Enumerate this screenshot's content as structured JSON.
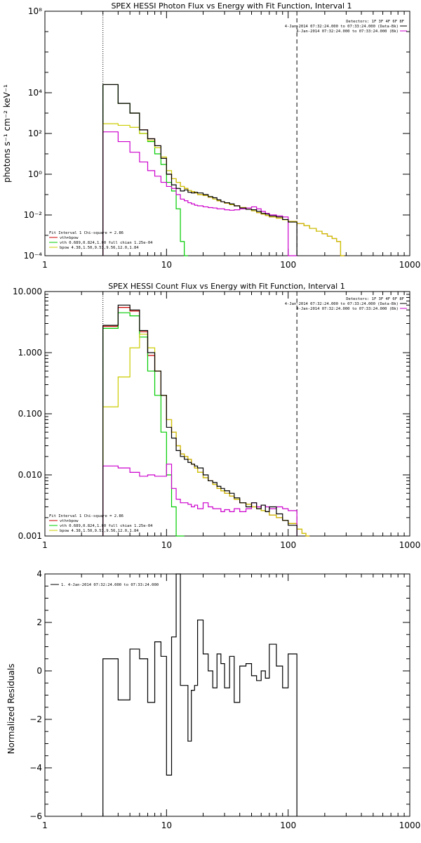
{
  "colors": {
    "total": "#cc0000",
    "vth": "#00cc00",
    "bpow": "#cccc00",
    "background": "#cc00cc",
    "data": "#000000"
  },
  "chart_data": [
    {
      "id": "photon",
      "type": "line",
      "title": "SPEX HESSI Photon Flux vs Energy with Fit Function, Interval 1",
      "ylabel": "photons s⁻¹ cm⁻² keV⁻¹",
      "xlog": true,
      "ylog": true,
      "xlim": [
        1,
        1000
      ],
      "ylim": [
        0.0001,
        100000000
      ],
      "xticks": [
        {
          "v": 1,
          "label": "1"
        },
        {
          "v": 10,
          "label": "10"
        },
        {
          "v": 100,
          "label": "100"
        },
        {
          "v": 1000,
          "label": "1000"
        }
      ],
      "yticks": [
        {
          "v": 0.0001,
          "label": "10⁻⁴"
        },
        {
          "v": 0.01,
          "label": "10⁻²"
        },
        {
          "v": 1,
          "label": "10⁰"
        },
        {
          "v": 100,
          "label": "10²"
        },
        {
          "v": 10000,
          "label": "10⁴"
        },
        {
          "v": 100000000,
          "label": "10⁸"
        }
      ],
      "vlines": [
        {
          "x": 3.0,
          "style": "dotted"
        },
        {
          "x": 118,
          "style": "dashed"
        }
      ],
      "legend_top_right": [
        "Detectors: 1F 3F 4F 6F 8F",
        "4-Jan-2014 07:32:24.000 to 07:33:24.000 (Data-Bk)",
        "4-Jan-2014 07:32:24.000 to 07:33:24.000 (Bk)"
      ],
      "legend_bottom_left": [
        "Fit Interval 1   Chi-square = 2.86",
        "vth+bpow",
        "vth 0.689,0.824,1.00  full chian 1.25e-04",
        "bpow 4.38,1.50,9.53,9.56,12.0,1.84"
      ],
      "edges": [
        3.0,
        3.5,
        4.0,
        4.5,
        5.0,
        5.5,
        6.0,
        6.5,
        7.0,
        7.5,
        8.0,
        8.5,
        9.0,
        9.5,
        10.0,
        11.0,
        12.0,
        13.0,
        14.0,
        15.0,
        16.0,
        17.0,
        18.0,
        20.0,
        22.0,
        24.0,
        26.0,
        28.0,
        30.0,
        33.0,
        36.0,
        40.0,
        45.0,
        50.0,
        55.0,
        60.0,
        65.0,
        70.0,
        80.0,
        90.0,
        100.0,
        118.0
      ],
      "ext_edges": [
        118,
        135,
        150,
        170,
        190,
        210,
        230,
        250,
        270,
        290
      ],
      "series": [
        {
          "name": "vth+bpow",
          "role": "total",
          "values": [
            25000,
            25000,
            3000,
            3000,
            1000,
            1000,
            150,
            150,
            55,
            55,
            25,
            25,
            6,
            6,
            1,
            0.6,
            0.4,
            0.25,
            0.2,
            0.16,
            0.14,
            0.12,
            0.1,
            0.09,
            0.075,
            0.06,
            0.05,
            0.045,
            0.038,
            0.032,
            0.028,
            0.023,
            0.019,
            0.016,
            0.013,
            0.011,
            0.0095,
            0.008,
            0.007,
            0.0058,
            0.0048
          ],
          "ext": [
            0.0038,
            0.003,
            0.0022,
            0.0016,
            0.0012,
            0.0009,
            0.0007,
            0.0005,
            0.0001
          ]
        },
        {
          "name": "vth",
          "role": "vth",
          "values": [
            25000,
            25000,
            3000,
            3000,
            1000,
            1000,
            100,
            100,
            40,
            40,
            10,
            10,
            3,
            3,
            0.4,
            0.15,
            0.02,
            0.0005,
            1e-05
          ]
        },
        {
          "name": "bpow",
          "role": "bpow",
          "values": [
            300,
            300,
            250,
            250,
            200,
            200,
            100,
            100,
            45,
            45,
            20,
            20,
            7,
            7,
            1.5,
            0.6,
            0.4,
            0.25,
            0.2,
            0.16,
            0.14,
            0.12,
            0.1,
            0.09,
            0.075,
            0.06,
            0.05,
            0.045,
            0.038,
            0.032,
            0.028,
            0.023,
            0.019,
            0.016,
            0.013,
            0.011,
            0.0095,
            0.008,
            0.007,
            0.0058,
            0.0048
          ],
          "ext": [
            0.0038,
            0.003,
            0.0022,
            0.0016,
            0.0012,
            0.0009,
            0.0007,
            0.0005,
            0.0001
          ]
        },
        {
          "name": "Bk",
          "role": "background",
          "values": [
            120,
            120,
            40,
            40,
            12,
            12,
            4,
            4,
            1.5,
            1.5,
            0.8,
            0.8,
            0.4,
            0.4,
            0.25,
            0.2,
            0.1,
            0.06,
            0.05,
            0.04,
            0.035,
            0.03,
            0.028,
            0.025,
            0.023,
            0.022,
            0.02,
            0.02,
            0.018,
            0.017,
            0.018,
            0.02,
            0.022,
            0.025,
            0.02,
            0.015,
            0.012,
            0.01,
            0.009,
            0.008,
            0.0001
          ]
        },
        {
          "name": "Data-Bk",
          "role": "data",
          "values": [
            25000,
            25000,
            3000,
            3000,
            1000,
            1000,
            150,
            150,
            55,
            55,
            25,
            25,
            6,
            6,
            1,
            0.3,
            0.2,
            0.15,
            0.17,
            0.13,
            0.12,
            0.13,
            0.12,
            0.1,
            0.08,
            0.07,
            0.055,
            0.045,
            0.04,
            0.035,
            0.028,
            0.022,
            0.019,
            0.018,
            0.015,
            0.012,
            0.011,
            0.009,
            0.008,
            0.006,
            0.0045
          ]
        }
      ]
    },
    {
      "id": "count",
      "type": "line",
      "title": "SPEX HESSI Count Flux vs Energy with Fit Function, Interval 1",
      "ylabel": "",
      "xlog": true,
      "ylog": true,
      "xlim": [
        1,
        1000
      ],
      "ylim": [
        0.001,
        10
      ],
      "xticks": [
        {
          "v": 1,
          "label": "1"
        },
        {
          "v": 10,
          "label": "10"
        },
        {
          "v": 100,
          "label": "100"
        },
        {
          "v": 1000,
          "label": "1000"
        }
      ],
      "yticks": [
        {
          "v": 0.001,
          "label": "0.001"
        },
        {
          "v": 0.01,
          "label": "0.010"
        },
        {
          "v": 0.1,
          "label": "0.100"
        },
        {
          "v": 1,
          "label": "1.000"
        },
        {
          "v": 10,
          "label": "10.000"
        }
      ],
      "vlines": [
        {
          "x": 3.0,
          "style": "dotted"
        },
        {
          "x": 118,
          "style": "dashed"
        }
      ],
      "legend_top_right": [
        "Detectors: 1F 3F 4F 6F 8F",
        "4-Jan-2014 07:32:24.000 to 07:33:24.000 (Data-Bk)",
        "4-Jan-2014 07:32:24.000 to 07:33:24.000 (Bk)"
      ],
      "legend_bottom_left": [
        "Fit Interval 1   Chi-square = 2.86",
        "vth+bpow",
        "vth 0.689,0.824,1.00  full chian 1.25e-04",
        "bpow 4.38,1.50,9.53,9.56,12.0,1.84"
      ],
      "edges": [
        3.0,
        3.5,
        4.0,
        4.5,
        5.0,
        5.5,
        6.0,
        6.5,
        7.0,
        7.5,
        8.0,
        8.5,
        9.0,
        9.5,
        10.0,
        11.0,
        12.0,
        13.0,
        14.0,
        15.0,
        16.0,
        17.0,
        18.0,
        20.0,
        22.0,
        24.0,
        26.0,
        28.0,
        30.0,
        33.0,
        36.0,
        40.0,
        45.0,
        50.0,
        55.0,
        60.0,
        65.0,
        70.0,
        80.0,
        90.0,
        100.0,
        118.0
      ],
      "ext_edges": [
        118,
        130,
        140,
        150
      ],
      "series": [
        {
          "name": "vth+bpow",
          "role": "total",
          "values": [
            2.7,
            2.7,
            5.5,
            5.5,
            4.8,
            4.8,
            2.2,
            2.2,
            0.9,
            0.9,
            0.5,
            0.5,
            0.2,
            0.2,
            0.08,
            0.05,
            0.03,
            0.022,
            0.02,
            0.018,
            0.015,
            0.013,
            0.011,
            0.009,
            0.008,
            0.007,
            0.006,
            0.0055,
            0.005,
            0.0045,
            0.004,
            0.0035,
            0.0033,
            0.003,
            0.0028,
            0.0026,
            0.0025,
            0.0022,
            0.002,
            0.0018,
            0.0016
          ],
          "ext": [
            0.0013,
            0.0011,
            0.001
          ]
        },
        {
          "name": "vth",
          "role": "vth",
          "values": [
            2.5,
            2.5,
            4.5,
            4.5,
            4,
            4,
            1.8,
            1.8,
            0.5,
            0.5,
            0.2,
            0.2,
            0.05,
            0.05,
            0.01,
            0.003,
            0.001,
            0.0005
          ]
        },
        {
          "name": "bpow",
          "role": "bpow",
          "values": [
            0.13,
            0.13,
            0.4,
            0.4,
            1.2,
            1.2,
            2,
            2,
            1.2,
            1.2,
            0.5,
            0.5,
            0.2,
            0.2,
            0.08,
            0.05,
            0.03,
            0.022,
            0.02,
            0.018,
            0.015,
            0.013,
            0.011,
            0.009,
            0.008,
            0.007,
            0.006,
            0.0055,
            0.005,
            0.0045,
            0.004,
            0.0035,
            0.0033,
            0.003,
            0.0028,
            0.0026,
            0.0025,
            0.0022,
            0.002,
            0.0018,
            0.0016
          ],
          "ext": [
            0.0013,
            0.0011,
            0.001
          ]
        },
        {
          "name": "Bk",
          "role": "background",
          "values": [
            0.014,
            0.014,
            0.013,
            0.013,
            0.011,
            0.011,
            0.0095,
            0.0095,
            0.01,
            0.01,
            0.0095,
            0.0095,
            0.0095,
            0.0095,
            0.015,
            0.006,
            0.004,
            0.0035,
            0.0035,
            0.0033,
            0.003,
            0.0032,
            0.0028,
            0.0035,
            0.003,
            0.0028,
            0.0028,
            0.0025,
            0.0027,
            0.0025,
            0.0028,
            0.0025,
            0.0028,
            0.0035,
            0.003,
            0.0032,
            0.003,
            0.0028,
            0.003,
            0.0028,
            0.0026
          ]
        },
        {
          "name": "Data-Bk",
          "role": "data",
          "values": [
            2.8,
            2.8,
            6,
            6,
            5,
            5,
            2.3,
            2.3,
            1,
            1,
            0.5,
            0.5,
            0.2,
            0.2,
            0.06,
            0.04,
            0.025,
            0.02,
            0.018,
            0.016,
            0.015,
            0.014,
            0.013,
            0.01,
            0.008,
            0.0075,
            0.0065,
            0.006,
            0.0055,
            0.005,
            0.0042,
            0.0035,
            0.003,
            0.0035,
            0.0028,
            0.0032,
            0.0025,
            0.003,
            0.0023,
            0.0018,
            0.0015
          ]
        }
      ]
    },
    {
      "id": "resid",
      "type": "line",
      "title": "",
      "ylabel": "Normalized Residuals",
      "xlog": true,
      "ylog": false,
      "xlim": [
        1,
        1000
      ],
      "ylim": [
        -6,
        4
      ],
      "xticks": [
        {
          "v": 1,
          "label": "1"
        },
        {
          "v": 10,
          "label": "10"
        },
        {
          "v": 100,
          "label": "100"
        },
        {
          "v": 1000,
          "label": "1000"
        }
      ],
      "yticks": [
        {
          "v": -6,
          "label": "−6"
        },
        {
          "v": -4,
          "label": "−4"
        },
        {
          "v": -2,
          "label": "−2"
        },
        {
          "v": 0,
          "label": "0"
        },
        {
          "v": 2,
          "label": "2"
        },
        {
          "v": 4,
          "label": "4"
        }
      ],
      "vlines": [],
      "legend_top_left": [
        "1.  4-Jan-2014 07:32:24.000 to 07:33:24.000"
      ],
      "edges": [
        3.0,
        4.0,
        5.0,
        6.0,
        7.0,
        8.0,
        9.0,
        10.0,
        11.0,
        12.0,
        13.0,
        14.0,
        15.0,
        16.0,
        17.0,
        18.0,
        20.0,
        22.0,
        24.0,
        26.0,
        28.0,
        30.0,
        33.0,
        36.0,
        40.0,
        45.0,
        50.0,
        55.0,
        60.0,
        65.0,
        70.0,
        80.0,
        90.0,
        100.0,
        110.0,
        118.0
      ],
      "series": [
        {
          "name": "Residuals",
          "role": "data",
          "values": [
            0.5,
            -1.2,
            0.9,
            0.5,
            -1.3,
            1.2,
            0.6,
            -4.3,
            1.4,
            4.0,
            -0.6,
            -0.6,
            -2.9,
            -0.8,
            -0.6,
            2.1,
            0.7,
            0.0,
            -0.7,
            0.7,
            0.3,
            -0.7,
            0.6,
            -1.3,
            0.2,
            0.3,
            -0.2,
            -0.4,
            0.0,
            -0.3,
            1.1,
            0.2,
            -0.7,
            0.7,
            0.7
          ]
        }
      ]
    }
  ]
}
